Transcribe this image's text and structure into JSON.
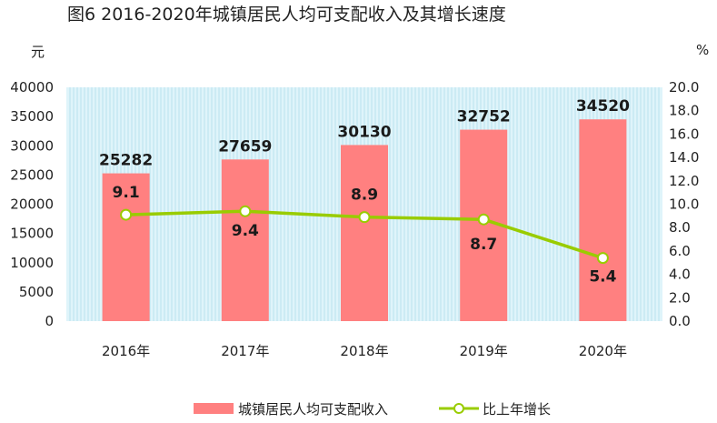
{
  "chart_data": {
    "type": "bar+line",
    "title": "图6   2016-2020年城镇居民人均可支配收入及其增长速度",
    "categories": [
      "2016年",
      "2017年",
      "2018年",
      "2019年",
      "2020年"
    ],
    "series": [
      {
        "name": "城镇居民人均可支配收入",
        "type": "bar",
        "axis": "left",
        "values": [
          25282,
          27659,
          30130,
          32752,
          34520
        ],
        "color": "#ff8080"
      },
      {
        "name": "比上年增长",
        "type": "line",
        "axis": "right",
        "values": [
          9.1,
          9.4,
          8.9,
          8.7,
          5.4
        ],
        "color": "#99cc00"
      }
    ],
    "y_left": {
      "unit": "元",
      "ylim": [
        0,
        40000
      ],
      "ticks": [
        "0",
        "5000",
        "10000",
        "15000",
        "20000",
        "25000",
        "30000",
        "35000",
        "40000"
      ]
    },
    "y_right": {
      "unit": "%",
      "ylim": [
        0,
        20
      ],
      "ticks": [
        "0.0",
        "2.0",
        "4.0",
        "6.0",
        "8.0",
        "10.0",
        "12.0",
        "14.0",
        "16.0",
        "18.0",
        "20.0"
      ]
    },
    "bar_labels": [
      "25282",
      "27659",
      "30130",
      "32752",
      "34520"
    ],
    "line_labels": [
      "9.1",
      "9.4",
      "8.9",
      "8.7",
      "5.4"
    ],
    "plot_background": "#dff4fa",
    "grid_color": "#b8e2ee",
    "legend_position": "bottom-center"
  }
}
